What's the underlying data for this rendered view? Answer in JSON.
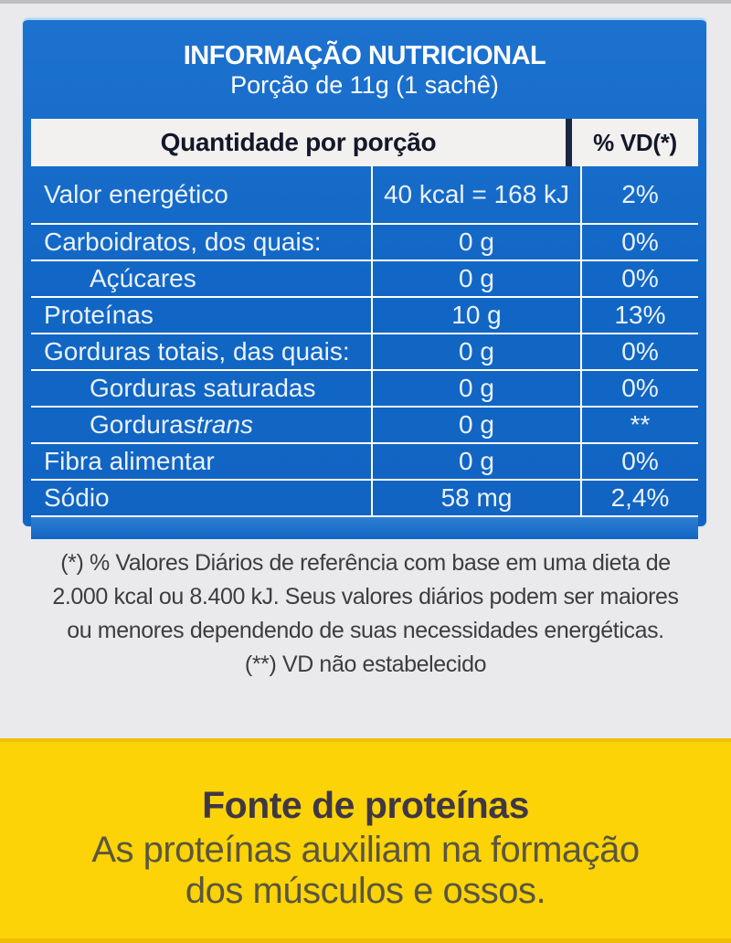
{
  "panel": {
    "title": "INFORMAÇÃO NUTRICIONAL",
    "subtitle": "Porção de 11g (1 sachê)",
    "col_header_left": "Quantidade por porção",
    "col_header_right": "% VD(*)"
  },
  "table": {
    "rows": [
      {
        "label": "Valor energético",
        "value": "40 kcal = 168 kJ",
        "vd": "2%",
        "indent": false,
        "tall": true
      },
      {
        "label": "Carboidratos, dos quais:",
        "value": "0 g",
        "vd": "0%",
        "indent": false
      },
      {
        "label": "Açúcares",
        "value": "0 g",
        "vd": "0%",
        "indent": true
      },
      {
        "label": "Proteínas",
        "value": "10 g",
        "vd": "13%",
        "indent": false
      },
      {
        "label": "Gorduras totais, das quais:",
        "value": "0 g",
        "vd": "0%",
        "indent": false
      },
      {
        "label": "Gorduras saturadas",
        "value": "0 g",
        "vd": "0%",
        "indent": true
      },
      {
        "label": "Gorduras ",
        "label_em": "trans",
        "value": "0 g",
        "vd": "**",
        "indent": true
      },
      {
        "label": "Fibra alimentar",
        "value": "0 g",
        "vd": "0%",
        "indent": false
      },
      {
        "label": "Sódio",
        "value": "58 mg",
        "vd": "2,4%",
        "indent": false
      }
    ]
  },
  "footnotes": {
    "lines": [
      "(*) % Valores Diários de referência com base em uma dieta de",
      "2.000 kcal ou 8.400 kJ. Seus valores diários podem ser maiores",
      "ou menores dependendo de suas necessidades energéticas.",
      "(**) VD não estabelecido"
    ]
  },
  "banner": {
    "title": "Fonte de proteínas",
    "lines": [
      "As proteínas auxiliam na formação",
      "dos músculos e ossos."
    ]
  },
  "colors": {
    "panel_blue": "#1368c8",
    "header_band_bg": "#f2f1ef",
    "banner_yellow": "#fcd307",
    "page_bg": "#eaeaec"
  }
}
